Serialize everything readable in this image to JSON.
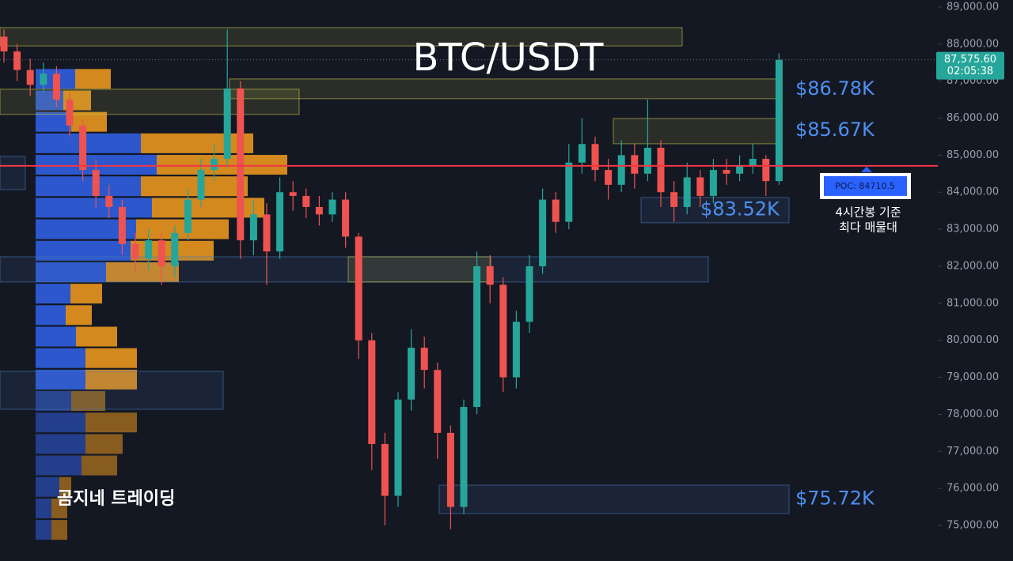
{
  "chart_data": {
    "type": "candlestick",
    "title": "BTC/USDT",
    "open": [
      88200,
      87800,
      87300,
      86900,
      87200,
      86500,
      85800,
      84600,
      83900,
      83600,
      82600,
      82200,
      82700,
      82000,
      82900,
      83800,
      84600,
      84900,
      86800,
      82700,
      83400,
      82400,
      84000,
      83900,
      83600,
      83400,
      83800,
      82800,
      80000,
      77200,
      75800,
      78400,
      79800,
      79200,
      77500,
      75500,
      78200,
      82000,
      81500,
      79000,
      80500,
      82000,
      83800,
      83200,
      84800,
      85300,
      84600,
      84200,
      85000,
      84500,
      85200,
      84000,
      83600,
      84400,
      83900,
      84600,
      84500,
      84700,
      84900,
      84300
    ],
    "high": [
      88400,
      88000,
      87600,
      87500,
      87400,
      86700,
      86000,
      84900,
      84200,
      83800,
      82900,
      83000,
      82900,
      83100,
      84100,
      84900,
      85300,
      88400,
      87000,
      83800,
      83700,
      84400,
      84300,
      84100,
      83900,
      84000,
      84000,
      82900,
      80200,
      77500,
      78600,
      80300,
      80100,
      79400,
      77700,
      78400,
      82400,
      82300,
      81700,
      80800,
      82300,
      84100,
      84000,
      85300,
      86000,
      85500,
      84900,
      85400,
      85300,
      86500,
      85400,
      84300,
      84800,
      84600,
      84900,
      84900,
      85000,
      85300,
      85000,
      87750
    ],
    "low": [
      87500,
      87000,
      86600,
      86700,
      86300,
      85500,
      84300,
      83600,
      83300,
      82300,
      81800,
      81900,
      81500,
      81700,
      82700,
      83600,
      84300,
      84700,
      82200,
      82300,
      81500,
      82200,
      83500,
      83300,
      83100,
      83200,
      82500,
      79500,
      76500,
      75000,
      75500,
      78100,
      78700,
      76800,
      74900,
      75300,
      78000,
      81000,
      78600,
      78700,
      80200,
      81800,
      82900,
      83000,
      84500,
      84300,
      83800,
      84000,
      84100,
      84300,
      83600,
      83200,
      83400,
      83600,
      83700,
      84200,
      84300,
      84500,
      83900,
      84200
    ],
    "close": [
      87800,
      87300,
      86900,
      87200,
      86500,
      85800,
      84600,
      83900,
      83600,
      82600,
      82200,
      82700,
      82000,
      82900,
      83800,
      84600,
      84900,
      86800,
      82700,
      83400,
      82400,
      84000,
      83900,
      83600,
      83400,
      83800,
      82800,
      80000,
      77200,
      75800,
      78400,
      79800,
      79200,
      77500,
      75500,
      78200,
      82000,
      81500,
      79000,
      80500,
      82000,
      83800,
      83200,
      84800,
      85300,
      84600,
      84200,
      85000,
      84500,
      85200,
      84000,
      83600,
      84400,
      83900,
      84600,
      84500,
      84700,
      84900,
      84300,
      87575.6
    ],
    "up_color": "#26a69a",
    "down_color": "#ef5350",
    "ylim": [
      74040,
      89190
    ],
    "yticks": [
      {
        "value": 75000,
        "label": "75,000.00"
      },
      {
        "value": 76000,
        "label": "76,000.00"
      },
      {
        "value": 77000,
        "label": "77,000.00"
      },
      {
        "value": 78000,
        "label": "78,000.00"
      },
      {
        "value": 79000,
        "label": "79,000.00"
      },
      {
        "value": 80000,
        "label": "80,000.00"
      },
      {
        "value": 81000,
        "label": "81,000.00"
      },
      {
        "value": 82000,
        "label": "82,000.00"
      },
      {
        "value": 83000,
        "label": "83,000.00"
      },
      {
        "value": 84000,
        "label": "84,000.00"
      },
      {
        "value": 85000,
        "label": "85,000.00"
      },
      {
        "value": 86000,
        "label": "86,000.00"
      },
      {
        "value": 87000,
        "label": "87,000.00"
      },
      {
        "value": 88000,
        "label": "88,000.00"
      },
      {
        "value": 89000,
        "label": "89,000.00"
      }
    ],
    "grid": false,
    "last_price": {
      "value": 87575.6,
      "label": "87,575.60"
    },
    "countdown": "02:05:38",
    "poc": {
      "value": 84710.5,
      "label": "POC: 84710.5"
    },
    "poc_color": "#f23645",
    "poc_note": [
      "4시간봉 기준",
      "최다 매물대"
    ],
    "price_labels": [
      {
        "value": 86780,
        "label": "$86.78K"
      },
      {
        "value": 85670,
        "label": "$85.67K"
      },
      {
        "value": 83520,
        "label": "$83.52K"
      },
      {
        "value": 75720,
        "label": "$75.72K"
      }
    ],
    "zones": [
      {
        "low": 87950,
        "high": 88445,
        "color": "#c8c850"
      },
      {
        "low": 86525,
        "high": 87058,
        "color": "#c8c850"
      },
      {
        "low": 86100,
        "high": 86780,
        "color": "#c8c850"
      },
      {
        "low": 85308,
        "high": 85990,
        "color": "#c8c850"
      },
      {
        "low": 83174,
        "high": 83857,
        "color": "#4a7ab8"
      },
      {
        "low": 81574,
        "high": 82256,
        "color": "#4a7ab8"
      },
      {
        "low": 81574,
        "high": 82256,
        "color": "#c8c850"
      },
      {
        "low": 84070,
        "high": 84967,
        "color": "#4a7ab8"
      },
      {
        "low": 78137,
        "high": 79162,
        "color": "#4a7ab8"
      },
      {
        "low": 75320,
        "high": 76089,
        "color": "#4a7ab8"
      }
    ],
    "volume_profile": {
      "levels": [
        87060,
        86480,
        85900,
        85320,
        84740,
        84160,
        83580,
        83000,
        82420,
        81840,
        81260,
        80680,
        80100,
        79520,
        78940,
        78360,
        77780,
        77200,
        76620,
        76040,
        75460,
        74880
      ],
      "buy": [
        50,
        35,
        45,
        133,
        153,
        133,
        147,
        127,
        120,
        89,
        44,
        38,
        51,
        63,
        63,
        45,
        63,
        63,
        58,
        30,
        20,
        20
      ],
      "sell": [
        45,
        35,
        45,
        142,
        165,
        135,
        142,
        117,
        105,
        92,
        40,
        33,
        52,
        65,
        65,
        43,
        65,
        47,
        45,
        15,
        20,
        20
      ],
      "buy_color": "#2f5ee0",
      "sell_color": "#e8961e"
    }
  },
  "watermark": "곰지네 트레이딩"
}
